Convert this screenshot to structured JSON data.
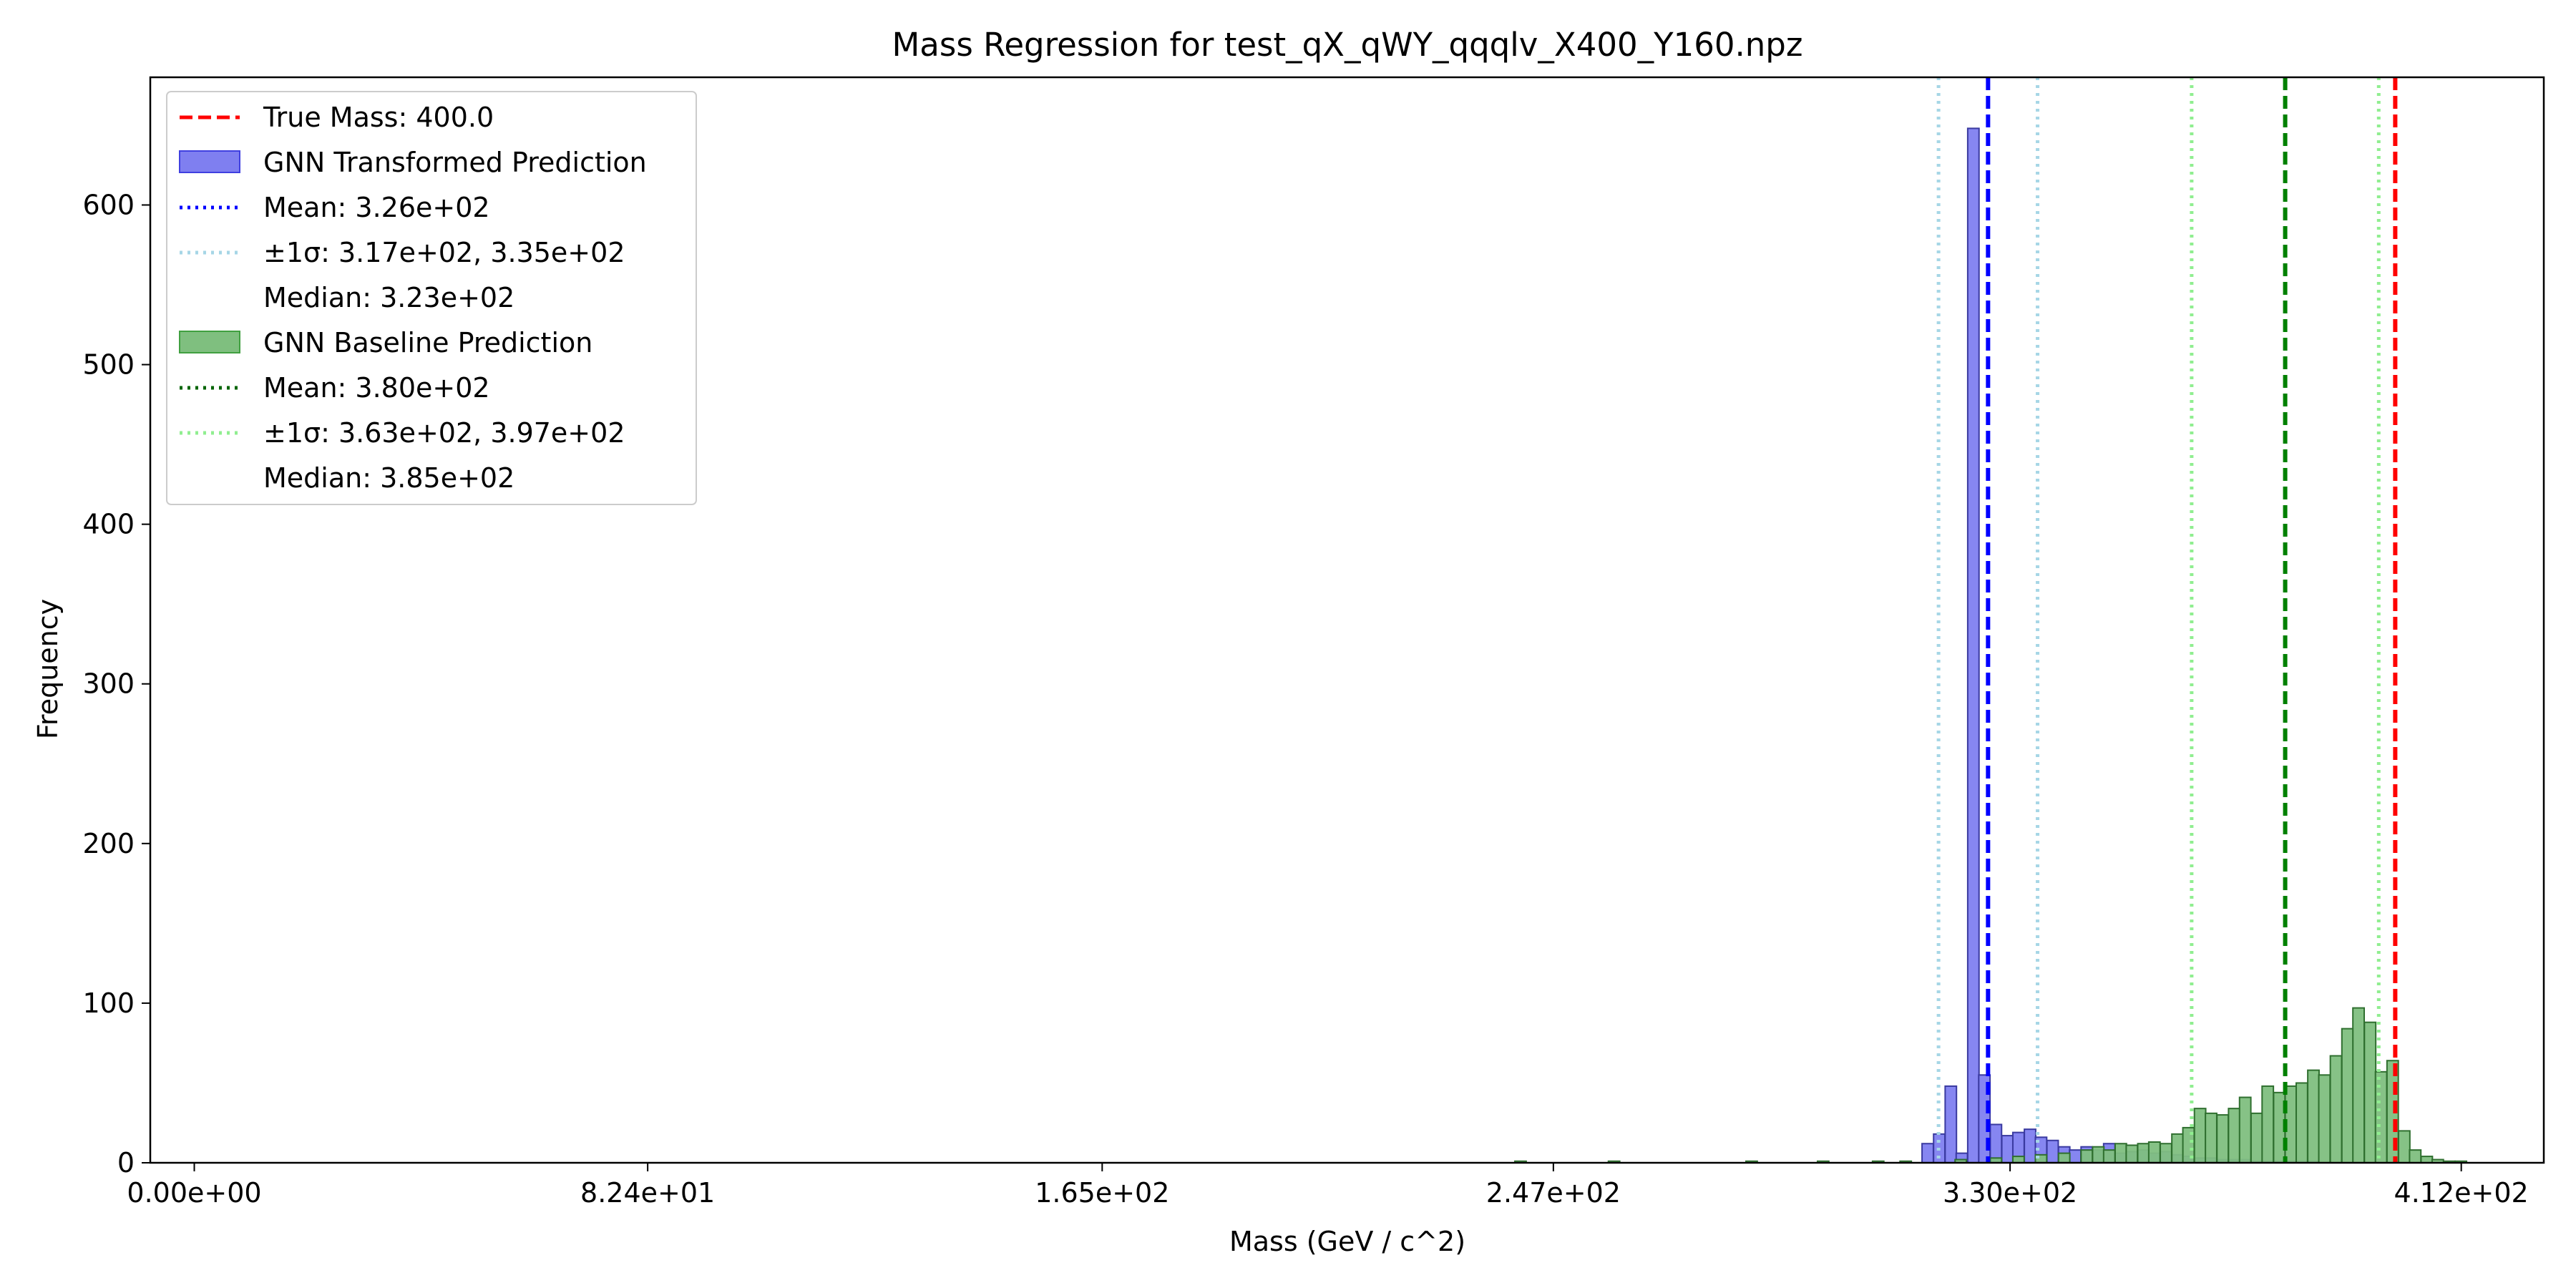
{
  "chart_data": {
    "type": "bar",
    "title": "Mass Regression for test_qX_qWY_qqqlv_X400_Y160.npz",
    "xlabel": "Mass (GeV / c^2)",
    "ylabel": "Frequency",
    "xlim": [
      -8,
      427
    ],
    "ylim": [
      0,
      680
    ],
    "x_ticks": [
      {
        "value": 0,
        "label": "0.00e+00"
      },
      {
        "value": 82.4,
        "label": "8.24e+01"
      },
      {
        "value": 165,
        "label": "1.65e+02"
      },
      {
        "value": 247,
        "label": "2.47e+02"
      },
      {
        "value": 330,
        "label": "3.30e+02"
      },
      {
        "value": 412,
        "label": "4.12e+02"
      }
    ],
    "y_ticks": [
      {
        "value": 0,
        "label": "0"
      },
      {
        "value": 100,
        "label": "100"
      },
      {
        "value": 200,
        "label": "200"
      },
      {
        "value": 300,
        "label": "300"
      },
      {
        "value": 400,
        "label": "400"
      },
      {
        "value": 500,
        "label": "500"
      },
      {
        "value": 600,
        "label": "600"
      }
    ],
    "legend_position": "top-left",
    "grid": false,
    "series": [
      {
        "name": "GNN Transformed Prediction",
        "color": "#7f7ff0",
        "edge_color": "#3a3aa0",
        "bin_width": 2.06,
        "bins": [
          [
            314.0,
            12
          ],
          [
            316.1,
            18
          ],
          [
            318.2,
            48
          ],
          [
            320.2,
            6
          ],
          [
            322.3,
            648
          ],
          [
            324.3,
            55
          ],
          [
            326.4,
            24
          ],
          [
            328.5,
            17
          ],
          [
            330.5,
            19
          ],
          [
            332.6,
            21
          ],
          [
            334.6,
            16
          ],
          [
            336.7,
            14
          ],
          [
            338.8,
            10
          ],
          [
            340.8,
            8
          ],
          [
            342.9,
            10
          ],
          [
            344.9,
            8
          ],
          [
            347.0,
            12
          ],
          [
            349.1,
            6
          ],
          [
            351.1,
            7
          ],
          [
            353.2,
            8
          ],
          [
            355.2,
            6
          ],
          [
            357.3,
            7
          ],
          [
            359.4,
            5
          ],
          [
            361.4,
            4
          ],
          [
            363.5,
            3
          ],
          [
            365.5,
            3
          ],
          [
            367.6,
            2
          ],
          [
            369.7,
            2
          ],
          [
            371.7,
            2
          ],
          [
            373.8,
            1
          ],
          [
            375.8,
            1
          ],
          [
            377.9,
            1
          ],
          [
            380.0,
            1
          ],
          [
            382.0,
            1
          ],
          [
            384.1,
            1
          ]
        ]
      },
      {
        "name": "GNN Baseline Prediction",
        "color": "#7fbf7f",
        "edge_color": "#2f6f2f",
        "bin_width": 2.06,
        "bins": [
          [
            240.0,
            1
          ],
          [
            257.0,
            1
          ],
          [
            282.0,
            1
          ],
          [
            295.0,
            1
          ],
          [
            305.0,
            1
          ],
          [
            310.0,
            1
          ],
          [
            320.0,
            2
          ],
          [
            326.4,
            3
          ],
          [
            330.5,
            4
          ],
          [
            334.6,
            5
          ],
          [
            338.8,
            6
          ],
          [
            342.9,
            8
          ],
          [
            345.0,
            10
          ],
          [
            347.0,
            8
          ],
          [
            349.1,
            12
          ],
          [
            351.1,
            11
          ],
          [
            353.2,
            12
          ],
          [
            355.2,
            13
          ],
          [
            357.3,
            12
          ],
          [
            359.4,
            18
          ],
          [
            361.4,
            22
          ],
          [
            363.5,
            34
          ],
          [
            365.5,
            31
          ],
          [
            367.6,
            30
          ],
          [
            369.7,
            34
          ],
          [
            371.7,
            41
          ],
          [
            373.8,
            31
          ],
          [
            375.8,
            48
          ],
          [
            377.9,
            44
          ],
          [
            380.0,
            48
          ],
          [
            382.0,
            50
          ],
          [
            384.1,
            58
          ],
          [
            386.1,
            55
          ],
          [
            388.2,
            67
          ],
          [
            390.3,
            84
          ],
          [
            392.3,
            97
          ],
          [
            394.4,
            88
          ],
          [
            396.4,
            57
          ],
          [
            398.5,
            64
          ],
          [
            400.6,
            20
          ],
          [
            402.6,
            8
          ],
          [
            404.7,
            4
          ],
          [
            406.7,
            2
          ],
          [
            408.8,
            1
          ],
          [
            410.9,
            1
          ]
        ]
      }
    ],
    "vlines": [
      {
        "x": 400.0,
        "color": "#ff0000",
        "style": "dashed"
      },
      {
        "x": 326.0,
        "color": "#0000ff",
        "style": "dashed"
      },
      {
        "x": 317.0,
        "color": "#a6d6e6",
        "style": "dotted"
      },
      {
        "x": 335.0,
        "color": "#a6d6e6",
        "style": "dotted"
      },
      {
        "x": 380.0,
        "color": "#008000",
        "style": "dashed"
      },
      {
        "x": 363.0,
        "color": "#90ee90",
        "style": "dotted"
      },
      {
        "x": 397.0,
        "color": "#90ee90",
        "style": "dotted"
      }
    ],
    "legend": [
      {
        "label": "True Mass: 400.0",
        "kind": "line",
        "color": "#ff0000",
        "style": "dashed"
      },
      {
        "label": "GNN Transformed Prediction",
        "kind": "patch",
        "color": "#7f7ff0",
        "edge": "#4040e0"
      },
      {
        "label": "Mean: 3.26e+02",
        "kind": "line",
        "color": "#0000ff",
        "style": "dotted"
      },
      {
        "label": "±1σ: 3.17e+02, 3.35e+02",
        "kind": "line",
        "color": "#a6d6e6",
        "style": "dotted"
      },
      {
        "label": "Median: 3.23e+02",
        "kind": "none"
      },
      {
        "label": "GNN Baseline Prediction",
        "kind": "patch",
        "color": "#7fbf7f",
        "edge": "#40a040"
      },
      {
        "label": "Mean: 3.80e+02",
        "kind": "line",
        "color": "#006400",
        "style": "dotted"
      },
      {
        "label": "±1σ: 3.63e+02, 3.97e+02",
        "kind": "line",
        "color": "#90ee90",
        "style": "dotted"
      },
      {
        "label": "Median: 3.85e+02",
        "kind": "none"
      }
    ]
  }
}
